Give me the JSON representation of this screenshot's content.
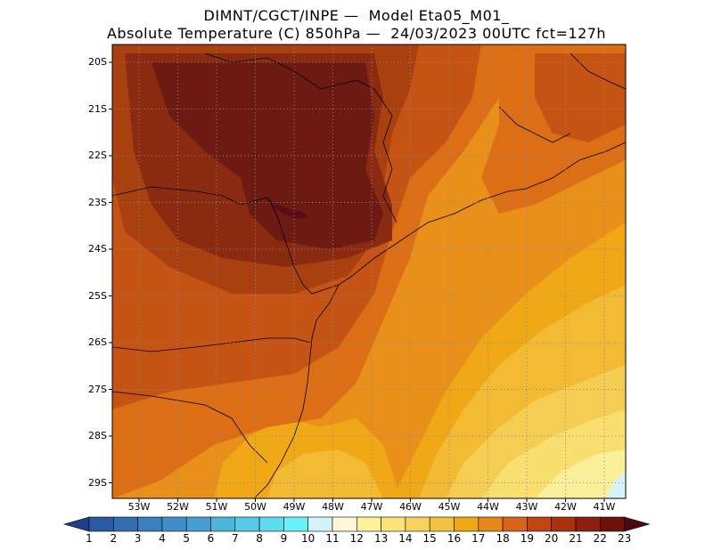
{
  "title_line1": "DIMNT/CGCT/INPE —  Model Eta05_M01_",
  "title_line2": "Absolute Temperature (C) 850hPa —  24/03/2023 00UTC fct=127h",
  "lat_labels": [
    "20S",
    "21S",
    "22S",
    "23S",
    "24S",
    "25S",
    "26S",
    "27S",
    "28S",
    "29S"
  ],
  "lon_labels": [
    "53W",
    "52W",
    "51W",
    "50W",
    "49W",
    "48W",
    "47W",
    "46W",
    "45W",
    "44W",
    "43W",
    "42W",
    "41W"
  ],
  "colorbar": {
    "labels": [
      "1",
      "2",
      "3",
      "4",
      "5",
      "6",
      "7",
      "8",
      "9",
      "10",
      "11",
      "12",
      "13",
      "14",
      "15",
      "16",
      "17",
      "18",
      "19",
      "20",
      "21",
      "22",
      "23"
    ],
    "colors": [
      "#1e3f8c",
      "#2b5aa3",
      "#336fb0",
      "#3a80bc",
      "#3f8fc6",
      "#45a0cf",
      "#4db5dc",
      "#57c9e6",
      "#5edcee",
      "#6cf0f7",
      "#d2f3fa",
      "#fff7d9",
      "#fff09a",
      "#fbe37a",
      "#f6d35e",
      "#f2c241",
      "#eeaa15",
      "#e58818",
      "#d8631a",
      "#c44312",
      "#a8320c",
      "#8c1f0e",
      "#6d1208",
      "#4f0710"
    ]
  },
  "map_colors": {
    "c23": "#5c0a1a",
    "c22": "#6d1a12",
    "c21": "#8a2a10",
    "c20": "#a9400f",
    "c19": "#c55313",
    "c18": "#dc6e16",
    "c17": "#e8901a",
    "c16": "#f0a817",
    "c15": "#f3bb34",
    "c14": "#f5cd52",
    "c13": "#f9df6f",
    "c12": "#fcef9a",
    "c10": "#d6f3f9"
  }
}
